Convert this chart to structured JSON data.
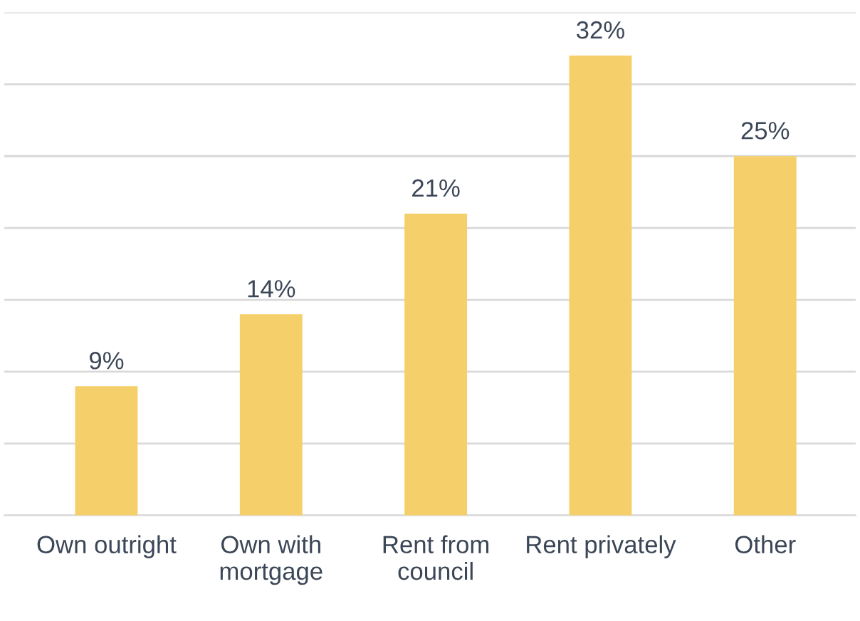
{
  "chart_data": {
    "type": "bar",
    "categories": [
      "Own outright",
      "Own with\nmortgage",
      "Rent from\ncouncil",
      "Rent privately",
      "Other"
    ],
    "values": [
      9,
      14,
      21,
      32,
      25
    ],
    "value_labels": [
      "9%",
      "14%",
      "21%",
      "32%",
      "25%"
    ],
    "color": "#f5d06a",
    "ylim": [
      0,
      35
    ],
    "yticks": [
      {
        "value": 0,
        "label": null
      },
      {
        "value": 5,
        "label": null
      },
      {
        "value": 10,
        "label": null
      },
      {
        "value": 15,
        "label": null
      },
      {
        "value": 20,
        "label": null
      },
      {
        "value": 25,
        "label": null
      },
      {
        "value": 30,
        "label": null
      },
      {
        "value": 35,
        "label": null
      }
    ],
    "grid": "y",
    "tick_labels": "x"
  }
}
